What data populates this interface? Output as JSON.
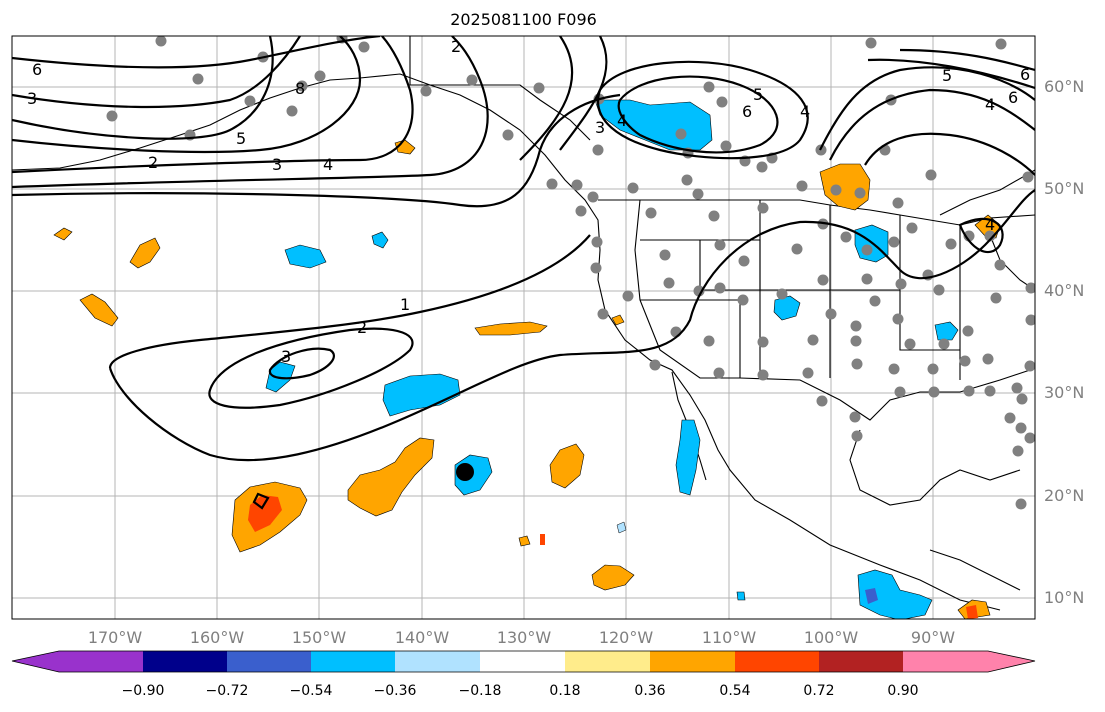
{
  "title": "2025081100 F096",
  "lat_labels": [
    "60°N",
    "50°N",
    "40°N",
    "30°N",
    "20°N",
    "10°N"
  ],
  "lon_labels": [
    "170°W",
    "160°W",
    "150°W",
    "140°W",
    "130°W",
    "120°W",
    "110°W",
    "100°W",
    "90°W"
  ],
  "colorbar": {
    "ticks": [
      "−0.90",
      "−0.72",
      "−0.54",
      "−0.36",
      "−0.18",
      "0.18",
      "0.36",
      "0.54",
      "0.72",
      "0.90"
    ],
    "colors": [
      "#9932cc",
      "#00008b",
      "#3a5fcd",
      "#00bfff",
      "#b0e2ff",
      "#ffffff",
      "#ffec8b",
      "#ffa500",
      "#ff4500",
      "#b22222",
      "#ff82ab"
    ]
  },
  "contour_labels": [
    "6",
    "3",
    "5",
    "2",
    "3",
    "4",
    "2",
    "3",
    "4",
    "6",
    "5",
    "6",
    "4",
    "5",
    "4",
    "6",
    "1",
    "2",
    "3",
    "8",
    "4"
  ]
}
